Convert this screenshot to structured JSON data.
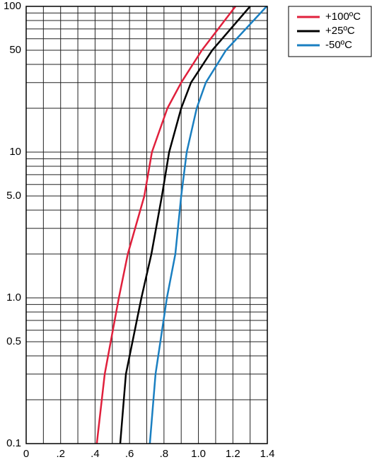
{
  "chart_data": {
    "type": "line",
    "log_y": true,
    "grid": true,
    "legend_position": "top-right",
    "xlim": [
      0,
      1.4
    ],
    "xticks": [
      0,
      {
        "value": 0.2,
        "label": ".2"
      },
      {
        "value": 0.4,
        "label": ".4"
      },
      {
        "value": 0.6,
        "label": ".6"
      },
      {
        "value": 0.8,
        "label": ".8"
      },
      {
        "value": 1.0,
        "label": "1.0"
      },
      1.2,
      1.4
    ],
    "xgrid": [
      0.1,
      0.3,
      0.5,
      0.7,
      0.9,
      1.1,
      1.3
    ],
    "ylim": [
      0.1,
      100
    ],
    "yticks": [
      0.1,
      0.5,
      {
        "value": 1,
        "label": "1.0"
      },
      {
        "value": 5,
        "label": "5.0"
      },
      10,
      50,
      100
    ],
    "ygrid": [
      0.2,
      0.3,
      0.4,
      0.6,
      0.7,
      0.8,
      0.9,
      2,
      3,
      4,
      6,
      7,
      8,
      9,
      20,
      30,
      40,
      60,
      70,
      80,
      90
    ],
    "series": [
      {
        "name": "+100ºC",
        "color": "#e0203c",
        "x": [
          0.41,
          0.456,
          0.538,
          0.59,
          0.686,
          0.73,
          0.82,
          0.9,
          1.02,
          1.215
        ],
        "values": [
          0.1,
          0.3,
          1,
          2,
          5,
          10,
          20,
          30,
          50,
          100
        ]
      },
      {
        "name": "+25ºC",
        "color": "#000000",
        "x": [
          0.546,
          0.579,
          0.669,
          0.727,
          0.788,
          0.83,
          0.9,
          0.957,
          1.08,
          1.3
        ],
        "values": [
          0.1,
          0.3,
          1,
          2,
          5,
          10,
          20,
          30,
          50,
          100
        ]
      },
      {
        "name": "-50ºC",
        "color": "#1a7fc1",
        "x": [
          0.718,
          0.751,
          0.817,
          0.866,
          0.9,
          0.932,
          0.99,
          1.043,
          1.16,
          1.396
        ],
        "values": [
          0.1,
          0.3,
          1,
          2,
          5,
          10,
          20,
          30,
          50,
          100
        ]
      }
    ]
  }
}
